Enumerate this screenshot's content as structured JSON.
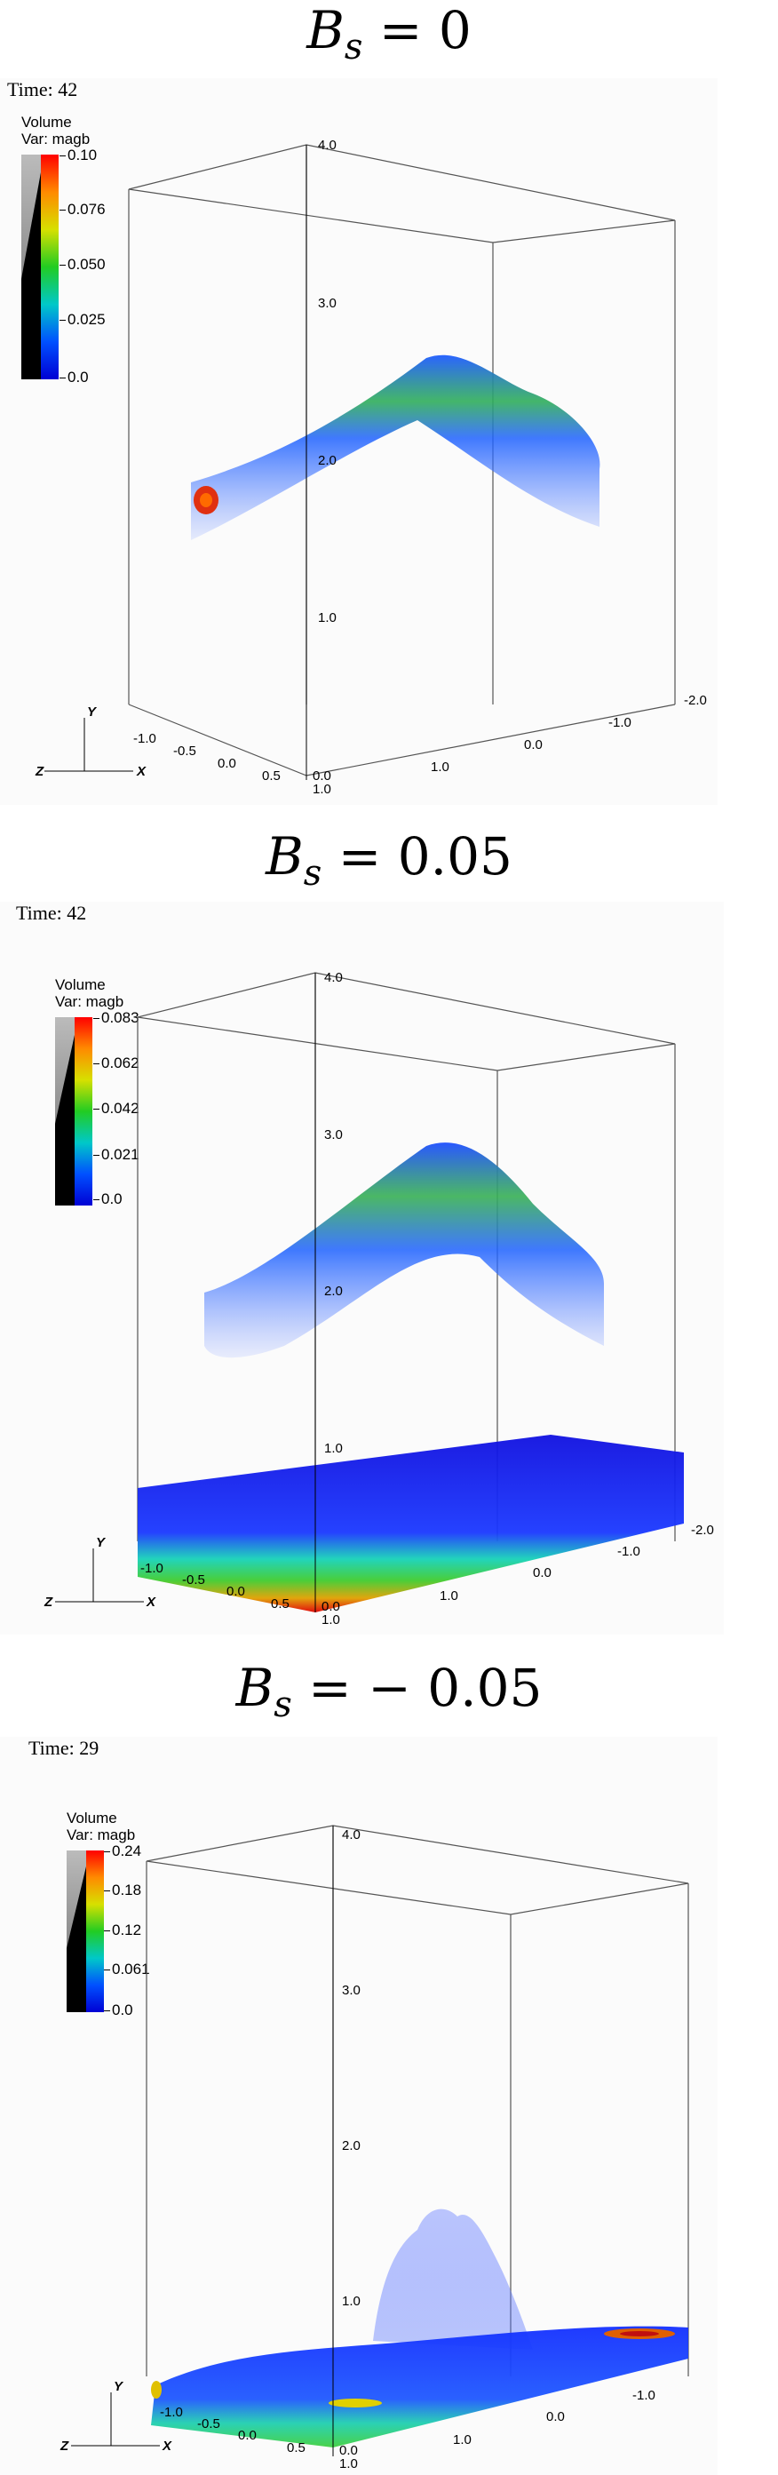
{
  "panels": [
    {
      "title": {
        "var": "B",
        "sub": "s",
        "rest": " = 0"
      },
      "time_label": "Time: 42",
      "legend": {
        "line1": "Volume",
        "line2": "Var: magb",
        "ticks": [
          "0.10",
          "0.076",
          "0.050",
          "0.025",
          "0.0"
        ]
      },
      "y_ticks": [
        "4.0",
        "3.0",
        "2.0",
        "1.0"
      ],
      "x_ticks": [
        "-1.0",
        "-0.5",
        "0.0",
        "0.5"
      ],
      "z_ticks": [
        "1.0",
        "0.0",
        "-1.0",
        "-2.0"
      ],
      "corner_labels": [
        "0.0",
        "1.0"
      ],
      "axis_labels": {
        "x": "X",
        "y": "Y",
        "z": "Z"
      }
    },
    {
      "title": {
        "var": "B",
        "sub": "s",
        "rest": " = 0.05"
      },
      "time_label": "Time: 42",
      "legend": {
        "line1": "Volume",
        "line2": "Var: magb",
        "ticks": [
          "0.083",
          "0.062",
          "0.042",
          "0.021",
          "0.0"
        ]
      },
      "y_ticks": [
        "4.0",
        "3.0",
        "2.0",
        "1.0"
      ],
      "x_ticks": [
        "-1.0",
        "-0.5",
        "0.0",
        "0.5"
      ],
      "z_ticks": [
        "1.0",
        "0.0",
        "-1.0",
        "-2.0"
      ],
      "corner_labels": [
        "0.0",
        "1.0"
      ],
      "axis_labels": {
        "x": "X",
        "y": "Y",
        "z": "Z"
      }
    },
    {
      "title": {
        "var": "B",
        "sub": "s",
        "rest": " = − 0.05"
      },
      "time_label": "Time: 29",
      "legend": {
        "line1": "Volume",
        "line2": "Var: magb",
        "ticks": [
          "0.24",
          "0.18",
          "0.12",
          "0.061",
          "0.0"
        ]
      },
      "y_ticks": [
        "4.0",
        "3.0",
        "2.0",
        "1.0"
      ],
      "x_ticks": [
        "-1.0",
        "-0.5",
        "0.0",
        "0.5"
      ],
      "z_ticks": [
        "1.0",
        "0.0",
        "-1.0"
      ],
      "corner_labels": [
        "0.0",
        "1.0"
      ],
      "axis_labels": {
        "x": "X",
        "y": "Y",
        "z": "Z"
      }
    }
  ],
  "colors": {
    "high": "#ff0000",
    "mid": "#22cc22",
    "low": "#0000d4",
    "panel_bg": "#fbfbfb"
  },
  "colormap": "rainbow"
}
